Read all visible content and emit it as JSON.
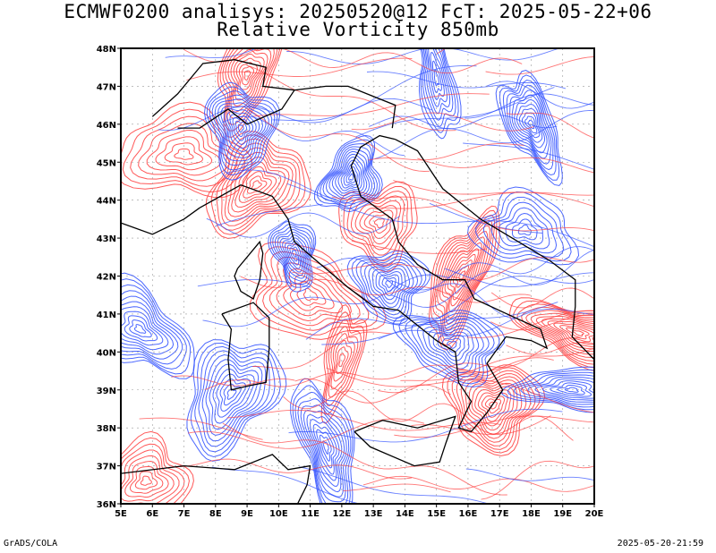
{
  "title_line1": "ECMWF0200 analisys: 20250520@12 FcT: 2025-05-22+06",
  "title_line2": "Relative Vorticity 850mb",
  "credit": "GrADS/COLA",
  "timestamp": "2025-05-20-21:59",
  "map": {
    "lon_range": [
      5,
      20
    ],
    "lat_range": [
      36,
      48
    ],
    "lon_ticks": [
      "5E",
      "6E",
      "7E",
      "8E",
      "9E",
      "10E",
      "11E",
      "12E",
      "13E",
      "14E",
      "15E",
      "16E",
      "17E",
      "18E",
      "19E",
      "20E"
    ],
    "lat_ticks": [
      "36N",
      "37N",
      "38N",
      "39N",
      "40N",
      "41N",
      "42N",
      "43N",
      "44N",
      "45N",
      "46N",
      "47N",
      "48N"
    ],
    "colors": {
      "positive": "#ff3b3b",
      "negative": "#2b4cff",
      "coastline": "#000000",
      "grid": "#999999"
    },
    "contour_fields": [
      {
        "sign": "positive",
        "lon": 7.0,
        "lat": 45.2
      },
      {
        "sign": "positive",
        "lon": 9.3,
        "lat": 44.4
      },
      {
        "sign": "positive",
        "lon": 11.0,
        "lat": 41.5
      },
      {
        "sign": "positive",
        "lon": 13.2,
        "lat": 43.4
      },
      {
        "sign": "positive",
        "lon": 15.8,
        "lat": 42.0
      },
      {
        "sign": "positive",
        "lon": 16.8,
        "lat": 38.6
      },
      {
        "sign": "positive",
        "lon": 19.5,
        "lat": 40.5
      },
      {
        "sign": "positive",
        "lon": 5.8,
        "lat": 36.6
      },
      {
        "sign": "positive",
        "lon": 9.0,
        "lat": 47.3
      },
      {
        "sign": "positive",
        "lon": 12.0,
        "lat": 39.8
      },
      {
        "sign": "negative",
        "lon": 8.8,
        "lat": 45.9
      },
      {
        "sign": "negative",
        "lon": 10.5,
        "lat": 42.6
      },
      {
        "sign": "negative",
        "lon": 13.5,
        "lat": 41.8
      },
      {
        "sign": "negative",
        "lon": 12.3,
        "lat": 44.6
      },
      {
        "sign": "negative",
        "lon": 5.6,
        "lat": 40.6
      },
      {
        "sign": "negative",
        "lon": 18.0,
        "lat": 46.0
      },
      {
        "sign": "negative",
        "lon": 17.8,
        "lat": 43.2
      },
      {
        "sign": "negative",
        "lon": 15.5,
        "lat": 40.2
      },
      {
        "sign": "negative",
        "lon": 8.5,
        "lat": 38.9
      },
      {
        "sign": "negative",
        "lon": 11.5,
        "lat": 37.5
      },
      {
        "sign": "negative",
        "lon": 15.0,
        "lat": 47.2
      },
      {
        "sign": "negative",
        "lon": 19.3,
        "lat": 39.0
      }
    ]
  }
}
